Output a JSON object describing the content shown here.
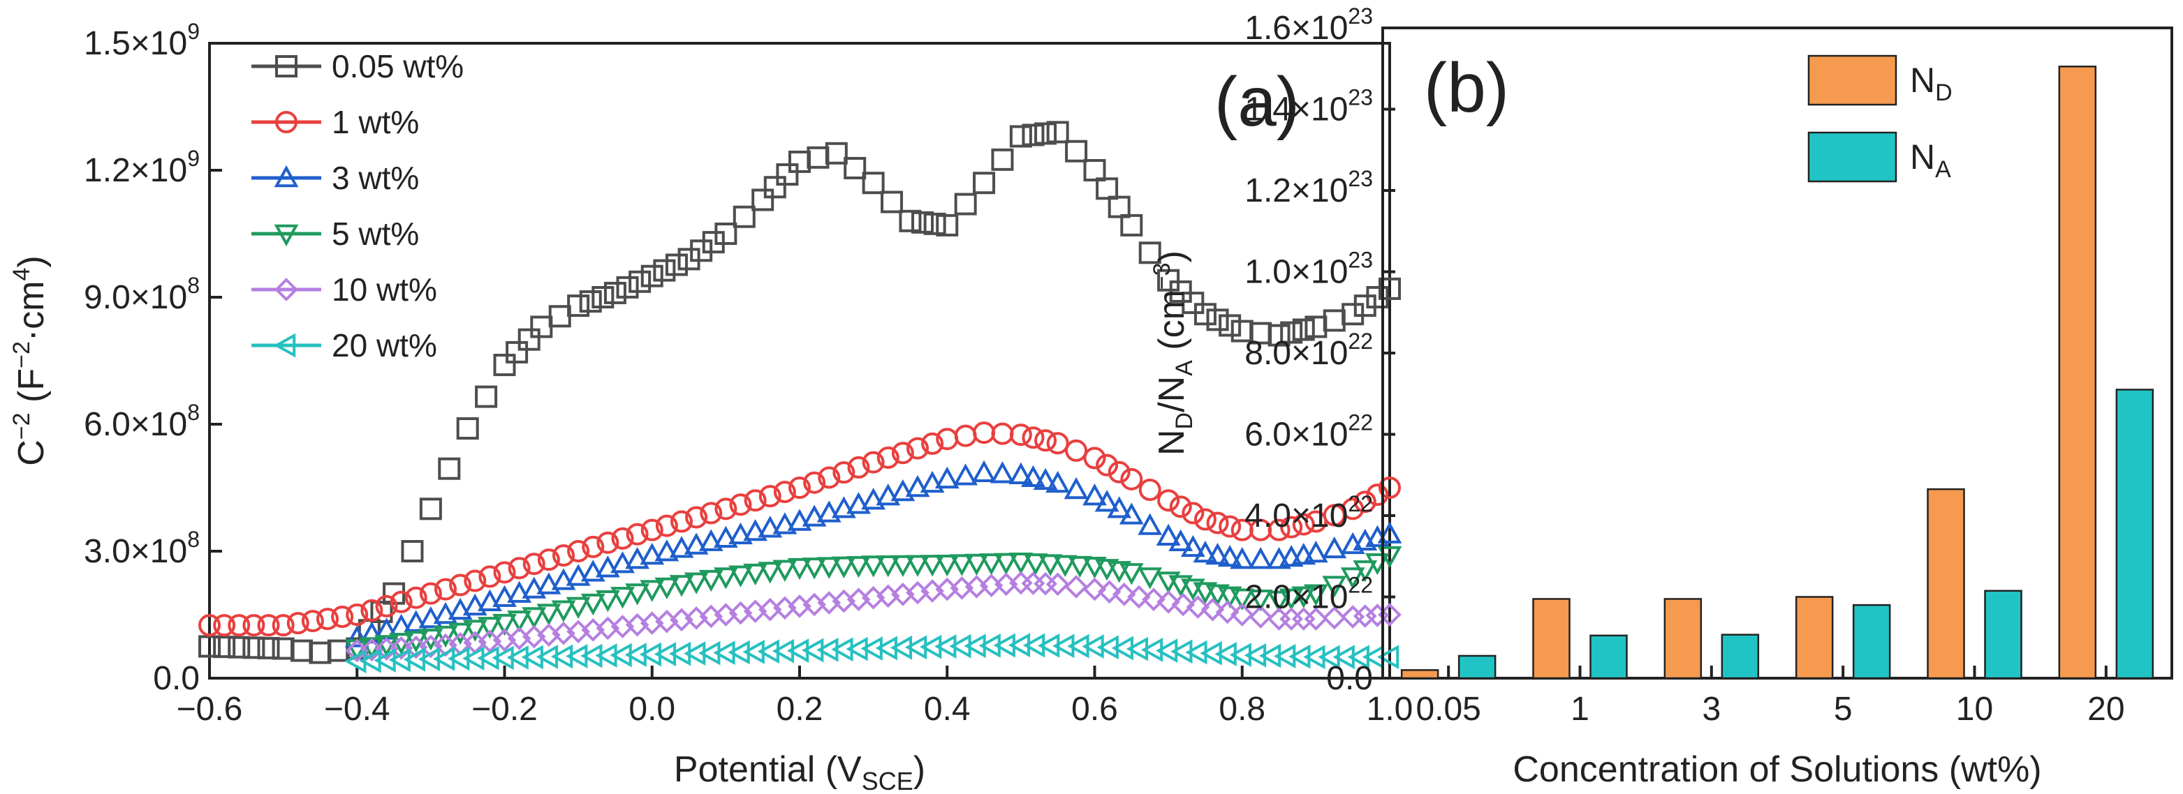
{
  "chart_data": [
    {
      "id": "a",
      "type": "scatter",
      "panel_label": "(a)",
      "xlabel_main": "Potential (V",
      "xlabel_sub": "SCE",
      "xlabel_end": ")",
      "ylabel_main": "C",
      "ylabel_sup": "−2",
      "ylabel_rest": " (F",
      "ylabel_sup2": "−2",
      "ylabel_rest2": "·cm",
      "ylabel_sup3": "4",
      "ylabel_end": ")",
      "xlim": [
        -0.6,
        1.0
      ],
      "ylim": [
        0,
        1500000000
      ],
      "xticks": [
        "−0.6",
        "−0.4",
        "−0.2",
        "0.0",
        "0.2",
        "0.4",
        "0.6",
        "0.8",
        "1.0"
      ],
      "xtick_values": [
        -0.6,
        -0.4,
        -0.2,
        0.0,
        0.2,
        0.4,
        0.6,
        0.8,
        1.0
      ],
      "yticks": [
        {
          "mant": "0.0",
          "exp": ""
        },
        {
          "mant": "3.0×10",
          "exp": "8"
        },
        {
          "mant": "6.0×10",
          "exp": "8"
        },
        {
          "mant": "9.0×10",
          "exp": "8"
        },
        {
          "mant": "1.2×10",
          "exp": "9"
        },
        {
          "mant": "1.5×10",
          "exp": "9"
        }
      ],
      "ytick_values": [
        0,
        300000000,
        600000000,
        900000000,
        1200000000,
        1500000000
      ],
      "series": [
        {
          "name": "0.05 wt%",
          "color": "#4d4d4d",
          "marker": "square",
          "x": [
            -0.6,
            -0.5,
            -0.45,
            -0.4,
            -0.35,
            -0.3,
            -0.25,
            -0.2,
            -0.15,
            -0.1,
            -0.05,
            0.0,
            0.05,
            0.1,
            0.15,
            0.2,
            0.25,
            0.3,
            0.35,
            0.4,
            0.45,
            0.5,
            0.55,
            0.6,
            0.65,
            0.7,
            0.75,
            0.8,
            0.85,
            0.9,
            0.95,
            1.0
          ],
          "y": [
            75000000,
            70000000,
            60000000,
            70000000,
            200000000,
            400000000,
            590000000,
            740000000,
            830000000,
            880000000,
            910000000,
            950000000,
            990000000,
            1050000000,
            1130000000,
            1220000000,
            1240000000,
            1170000000,
            1080000000,
            1070000000,
            1170000000,
            1280000000,
            1290000000,
            1200000000,
            1070000000,
            940000000,
            860000000,
            820000000,
            810000000,
            830000000,
            860000000,
            920000000
          ]
        },
        {
          "name": "1 wt%",
          "color": "#e8403f",
          "marker": "circle",
          "x": [
            -0.6,
            -0.5,
            -0.4,
            -0.3,
            -0.2,
            -0.1,
            0.0,
            0.1,
            0.2,
            0.3,
            0.4,
            0.45,
            0.5,
            0.55,
            0.6,
            0.65,
            0.7,
            0.75,
            0.8,
            0.85,
            0.9,
            0.95,
            1.0
          ],
          "y": [
            125000000,
            125000000,
            150000000,
            200000000,
            250000000,
            300000000,
            350000000,
            400000000,
            450000000,
            510000000,
            565000000,
            580000000,
            575000000,
            555000000,
            520000000,
            470000000,
            420000000,
            375000000,
            350000000,
            350000000,
            370000000,
            400000000,
            450000000
          ]
        },
        {
          "name": "3 wt%",
          "color": "#1f5fcc",
          "marker": "triangle-up",
          "x": [
            -0.4,
            -0.3,
            -0.2,
            -0.1,
            0.0,
            0.1,
            0.2,
            0.3,
            0.4,
            0.45,
            0.5,
            0.55,
            0.6,
            0.65,
            0.7,
            0.75,
            0.8,
            0.85,
            0.9,
            0.95,
            1.0
          ],
          "y": [
            95000000,
            140000000,
            190000000,
            240000000,
            290000000,
            330000000,
            370000000,
            420000000,
            470000000,
            485000000,
            480000000,
            460000000,
            430000000,
            385000000,
            335000000,
            295000000,
            280000000,
            280000000,
            295000000,
            315000000,
            340000000
          ]
        },
        {
          "name": "5 wt%",
          "color": "#1f9a5e",
          "marker": "triangle-down",
          "x": [
            -0.4,
            -0.3,
            -0.2,
            -0.1,
            0.0,
            0.1,
            0.2,
            0.3,
            0.4,
            0.5,
            0.6,
            0.65,
            0.7,
            0.75,
            0.8,
            0.85,
            0.9,
            0.95,
            1.0
          ],
          "y": [
            70000000,
            95000000,
            130000000,
            170000000,
            210000000,
            240000000,
            262000000,
            268000000,
            270000000,
            275000000,
            265000000,
            250000000,
            230000000,
            205000000,
            190000000,
            185000000,
            200000000,
            240000000,
            290000000
          ]
        },
        {
          "name": "10 wt%",
          "color": "#b57fe0",
          "marker": "diamond",
          "x": [
            -0.4,
            -0.3,
            -0.2,
            -0.1,
            0.0,
            0.1,
            0.2,
            0.3,
            0.4,
            0.5,
            0.55,
            0.6,
            0.7,
            0.8,
            0.85,
            0.9,
            0.95,
            1.0
          ],
          "y": [
            65000000,
            75000000,
            90000000,
            110000000,
            130000000,
            150000000,
            170000000,
            190000000,
            210000000,
            225000000,
            222000000,
            210000000,
            180000000,
            150000000,
            140000000,
            140000000,
            145000000,
            150000000
          ]
        },
        {
          "name": "20 wt%",
          "color": "#27c0c0",
          "marker": "triangle-left",
          "x": [
            -0.4,
            -0.3,
            -0.2,
            -0.1,
            0.0,
            0.1,
            0.2,
            0.3,
            0.4,
            0.5,
            0.6,
            0.7,
            0.8,
            0.9,
            1.0
          ],
          "y": [
            40000000,
            45000000,
            48000000,
            52000000,
            56000000,
            60000000,
            65000000,
            70000000,
            75000000,
            78000000,
            75000000,
            65000000,
            55000000,
            50000000,
            50000000
          ]
        }
      ]
    },
    {
      "id": "b",
      "type": "bar",
      "panel_label": "(b)",
      "xlabel": "Concentration of Solutions (wt%)",
      "ylabel_parts": [
        "N",
        "D",
        "/N",
        "A",
        " (cm",
        "−3",
        ")"
      ],
      "categories": [
        "0.05",
        "1",
        "3",
        "5",
        "10",
        "20"
      ],
      "ylim": [
        0,
        1.6e+23
      ],
      "yticks": [
        {
          "mant": "0.0",
          "exp": ""
        },
        {
          "mant": "2.0×10",
          "exp": "22"
        },
        {
          "mant": "4.0×10",
          "exp": "22"
        },
        {
          "mant": "6.0×10",
          "exp": "22"
        },
        {
          "mant": "8.0×10",
          "exp": "22"
        },
        {
          "mant": "1.0×10",
          "exp": "23"
        },
        {
          "mant": "1.2×10",
          "exp": "23"
        },
        {
          "mant": "1.4×10",
          "exp": "23"
        },
        {
          "mant": "1.6×10",
          "exp": "23"
        }
      ],
      "ytick_values": [
        0,
        2e+22,
        4e+22,
        6e+22,
        8e+22,
        1e+23,
        1.2e+23,
        1.4e+23,
        1.6e+23
      ],
      "series": [
        {
          "name_main": "N",
          "name_sub": "D",
          "color": "#f59a4f",
          "values": [
            2e+21,
            1.95e+22,
            1.95e+22,
            2e+22,
            4.65e+22,
            1.505e+23
          ]
        },
        {
          "name_main": "N",
          "name_sub": "A",
          "color": "#21c4c4",
          "values": [
            5.5e+21,
            1.05e+22,
            1.07e+22,
            1.8e+22,
            2.15e+22,
            7.1e+22
          ]
        }
      ]
    }
  ]
}
